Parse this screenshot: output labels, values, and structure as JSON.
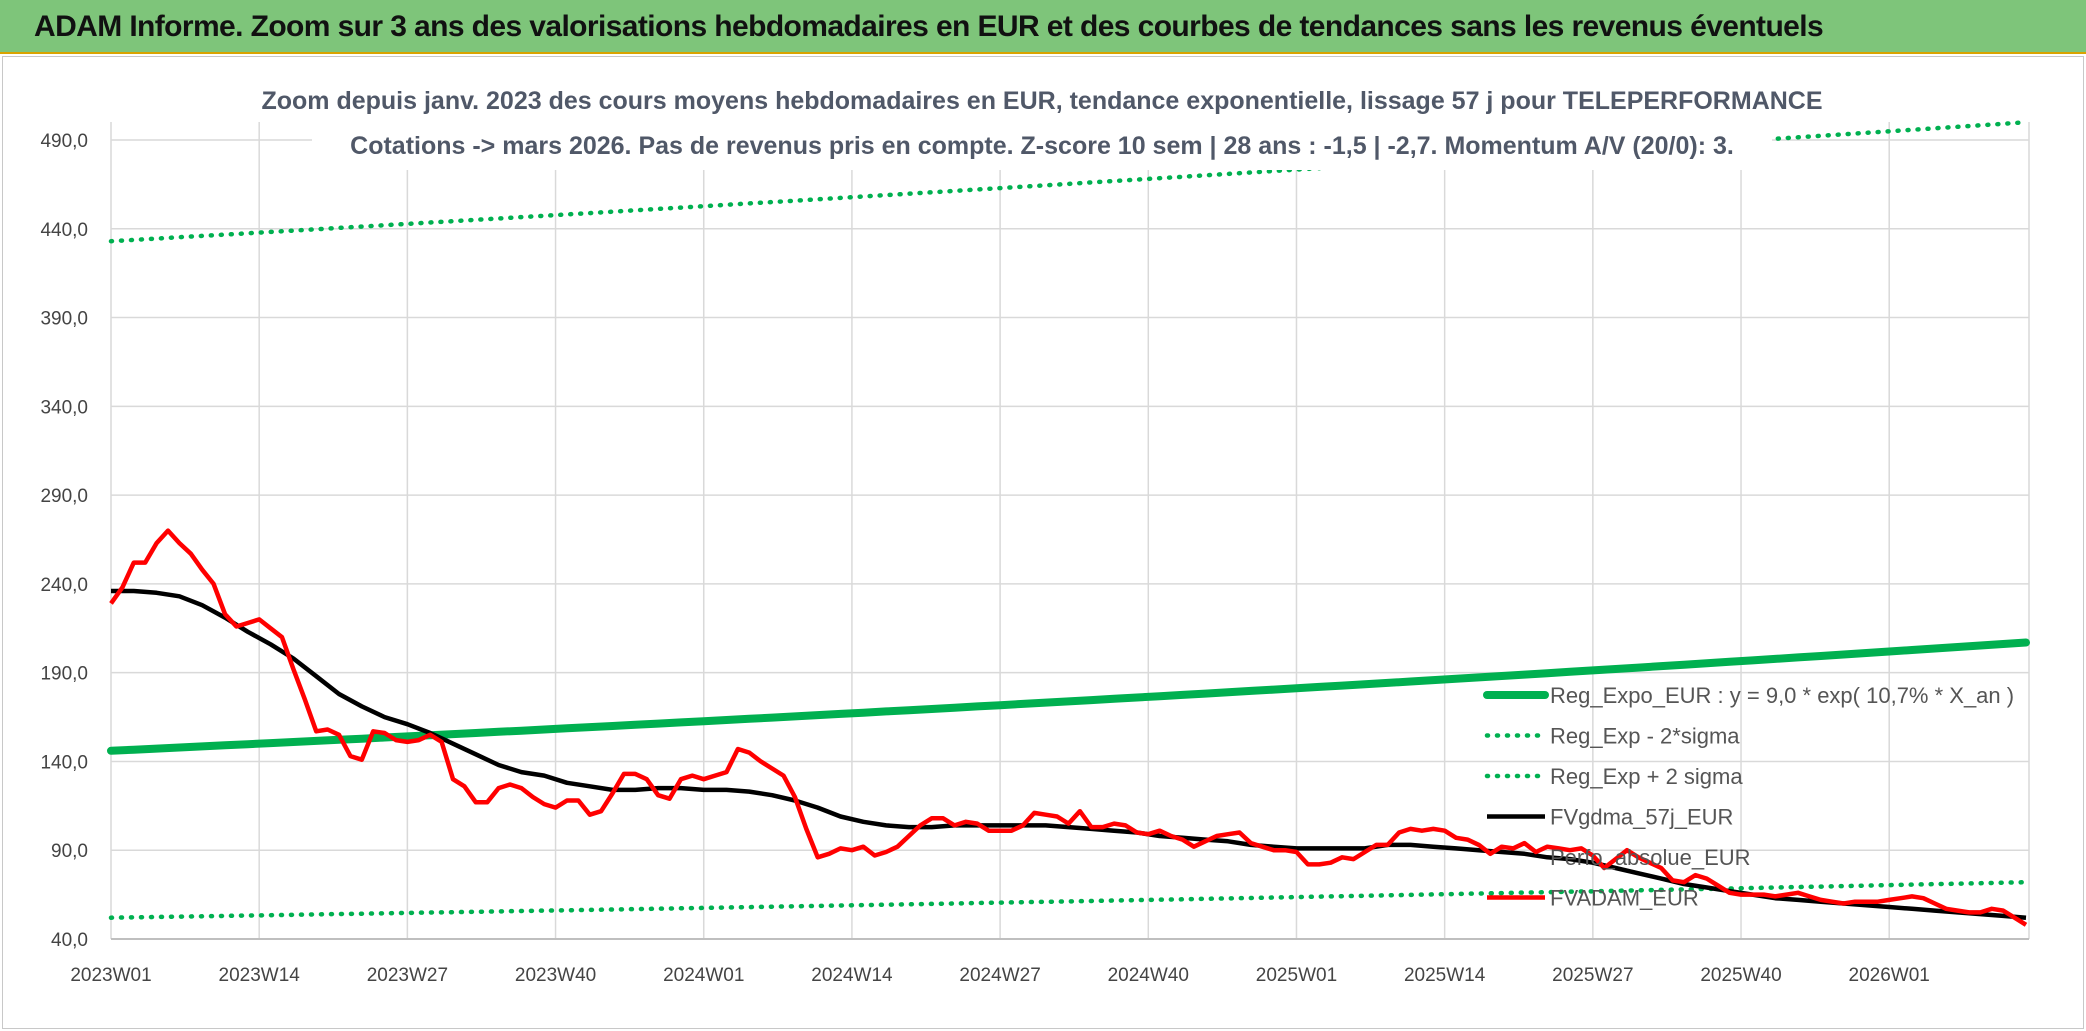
{
  "banner": {
    "title": "ADAM Informe. Zoom sur 3 ans des valorisations hebdomadaires en EUR et des courbes de tendances sans les revenus éventuels"
  },
  "chart_data": {
    "type": "line",
    "title": "Zoom depuis janv. 2023 des cours moyens hebdomadaires en EUR, tendance exponentielle, lissage 57 j pour TELEPERFORMANCE",
    "subtitle": "Cotations -> mars 2026. Pas de revenus pris en compte. Z-score 10 sem | 28 ans : -1,5 | -2,7. Momentum A/V (20/0): 3.",
    "xlabel": "",
    "ylabel": "",
    "x_ticks": [
      "2023W01",
      "2023W14",
      "2023W27",
      "2023W40",
      "2024W01",
      "2024W14",
      "2024W27",
      "2024W40",
      "2025W01",
      "2025W14",
      "2025W27",
      "2025W40",
      "2026W01"
    ],
    "y_ticks": [
      "40,0",
      "90,0",
      "140,0",
      "190,0",
      "240,0",
      "290,0",
      "340,0",
      "390,0",
      "440,0",
      "490,0"
    ],
    "ylim": [
      40,
      490
    ],
    "x_range_weeks": [
      0,
      168
    ],
    "grid": true,
    "legend_position": "bottom-right",
    "series": [
      {
        "name": "Reg_Expo_EUR : y = 9,0 * exp( 10,7% *  X_an )",
        "color": "#00b050",
        "style": "thick",
        "x": [
          0,
          168
        ],
        "y": [
          146,
          207
        ]
      },
      {
        "name": "Reg_Exp - 2*sigma",
        "color": "#00b050",
        "style": "dotted",
        "x": [
          0,
          168
        ],
        "y": [
          52,
          72
        ]
      },
      {
        "name": "Reg_Exp + 2 sigma",
        "color": "#00b050",
        "style": "dotted",
        "x": [
          0,
          168
        ],
        "y": [
          433,
          500
        ]
      },
      {
        "name": "FVgdma_57j_EUR",
        "color": "#000000",
        "style": "solid",
        "x": [
          0,
          2,
          4,
          6,
          8,
          10,
          12,
          14,
          16,
          18,
          20,
          22,
          24,
          26,
          28,
          30,
          32,
          34,
          36,
          38,
          40,
          42,
          44,
          46,
          48,
          50,
          52,
          54,
          56,
          58,
          60,
          62,
          64,
          66,
          68,
          70,
          72,
          74,
          76,
          78,
          80,
          82,
          84,
          86,
          88,
          90,
          92,
          94,
          96,
          98,
          100,
          102,
          104,
          106,
          108,
          110,
          112,
          114,
          116,
          118,
          120,
          122,
          124,
          126,
          128,
          130,
          132,
          134,
          136,
          138,
          140,
          142,
          144,
          146,
          148,
          150,
          152,
          154,
          156,
          158,
          160,
          162,
          164,
          166,
          168
        ],
        "y": [
          236,
          236,
          235,
          233,
          228,
          221,
          213,
          206,
          198,
          188,
          178,
          171,
          165,
          161,
          156,
          150,
          144,
          138,
          134,
          132,
          128,
          126,
          124,
          124,
          125,
          125,
          124,
          124,
          123,
          121,
          118,
          114,
          109,
          106,
          104,
          103,
          103,
          104,
          104,
          104,
          104,
          104,
          103,
          102,
          101,
          100,
          98,
          97,
          96,
          95,
          93,
          92,
          91,
          91,
          91,
          91,
          93,
          93,
          92,
          91,
          90,
          89,
          88,
          86,
          85,
          83,
          80,
          77,
          74,
          71,
          69,
          67,
          65,
          63,
          62,
          61,
          60,
          59,
          58,
          57,
          56,
          55,
          54,
          53,
          52
        ]
      },
      {
        "name": "Perfo_absolue_EUR",
        "color": "#7f7f7f",
        "style": "none",
        "x": [],
        "y": []
      },
      {
        "name": "FVADAM_EUR",
        "color": "#ff0000",
        "style": "solid",
        "x": [
          0,
          1,
          2,
          3,
          4,
          5,
          6,
          7,
          8,
          9,
          10,
          11,
          12,
          13,
          14,
          15,
          16,
          17,
          18,
          19,
          20,
          21,
          22,
          23,
          24,
          25,
          26,
          27,
          28,
          29,
          30,
          31,
          32,
          33,
          34,
          35,
          36,
          37,
          38,
          39,
          40,
          41,
          42,
          43,
          44,
          45,
          46,
          47,
          48,
          49,
          50,
          51,
          52,
          53,
          54,
          55,
          56,
          57,
          58,
          59,
          60,
          61,
          62,
          63,
          64,
          65,
          66,
          67,
          68,
          69,
          70,
          71,
          72,
          73,
          74,
          75,
          76,
          77,
          78,
          79,
          80,
          81,
          82,
          83,
          84,
          85,
          86,
          87,
          88,
          89,
          90,
          91,
          92,
          93,
          94,
          95,
          96,
          97,
          98,
          99,
          100,
          101,
          102,
          103,
          104,
          105,
          106,
          107,
          108,
          109,
          110,
          111,
          112,
          113,
          114,
          115,
          116,
          117,
          118,
          119,
          120,
          121,
          122,
          123,
          124,
          125,
          126,
          127,
          128,
          129,
          130,
          131,
          132,
          133,
          134,
          135,
          136,
          137,
          138,
          139,
          140,
          141,
          142,
          143,
          144,
          145,
          146,
          147,
          148,
          149,
          150,
          151,
          152,
          153,
          154,
          155,
          156,
          157,
          158,
          159,
          160,
          161,
          162,
          163,
          164,
          165,
          166,
          167,
          168
        ],
        "y": [
          229,
          238,
          252,
          252,
          263,
          270,
          263,
          257,
          248,
          240,
          223,
          216,
          218,
          220,
          215,
          210,
          192,
          175,
          157,
          158,
          155,
          143,
          141,
          157,
          156,
          152,
          151,
          152,
          155,
          151,
          130,
          126,
          117,
          117,
          125,
          127,
          125,
          120,
          116,
          114,
          118,
          118,
          110,
          112,
          122,
          133,
          133,
          130,
          121,
          119,
          130,
          132,
          130,
          132,
          134,
          147,
          145,
          140,
          136,
          132,
          120,
          102,
          86,
          88,
          91,
          90,
          92,
          87,
          89,
          92,
          98,
          104,
          108,
          108,
          104,
          106,
          105,
          101,
          101,
          101,
          104,
          111,
          110,
          109,
          105,
          112,
          103,
          103,
          105,
          104,
          100,
          99,
          101,
          98,
          96,
          92,
          95,
          98,
          99,
          100,
          94,
          92,
          90,
          90,
          89,
          82,
          82,
          83,
          86,
          85,
          89,
          93,
          93,
          100,
          102,
          101,
          102,
          101,
          97,
          96,
          93,
          88,
          92,
          91,
          94,
          89,
          92,
          91,
          90,
          91,
          87,
          80,
          85,
          90,
          86,
          83,
          80,
          73,
          72,
          76,
          74,
          70,
          66,
          65,
          65,
          65,
          64,
          65,
          66,
          64,
          62,
          61,
          60,
          61,
          61,
          61,
          62,
          63,
          64,
          63,
          60,
          57,
          56,
          55,
          55,
          57,
          56,
          52,
          48
        ]
      }
    ]
  },
  "legend": {
    "items": [
      "Reg_Expo_EUR : y = 9,0 * exp( 10,7% *  X_an )",
      "Reg_Exp - 2*sigma",
      "Reg_Exp + 2 sigma",
      "FVgdma_57j_EUR",
      "Perfo_absolue_EUR",
      "FVADAM_EUR"
    ]
  }
}
